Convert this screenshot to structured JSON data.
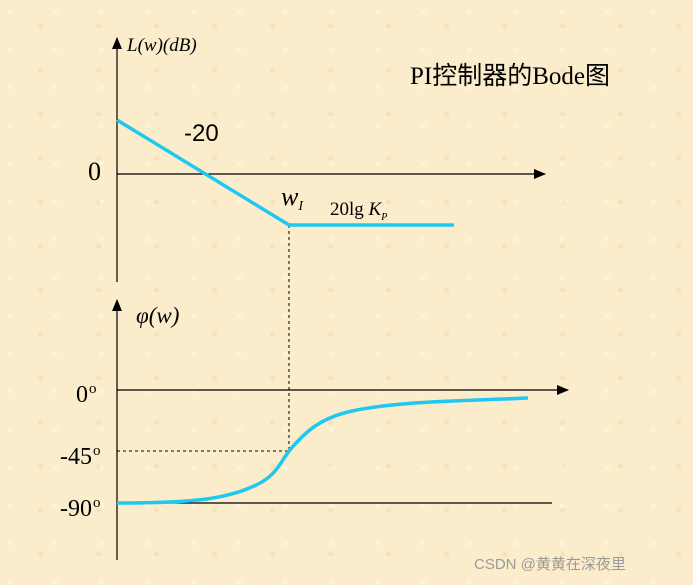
{
  "title": "PI控制器的Bode图",
  "magnitude_plot": {
    "ylabel": "L(w)(dB)",
    "zero_tick": "0",
    "slope_label": "-20",
    "corner_label": {
      "symbol": "w",
      "subscript": "I"
    },
    "gain_label": {
      "prefix": "20lg",
      "symbol": "K",
      "subscript": "P"
    }
  },
  "phase_plot": {
    "ylabel": "φ(w)",
    "ticks": [
      {
        "value": "0",
        "unit": "o"
      },
      {
        "value": "-45",
        "unit": "o"
      },
      {
        "value": "-90",
        "unit": "o"
      }
    ]
  },
  "watermark": "CSDN @黄黄在深夜里",
  "colors": {
    "curve": "#1fc8f0",
    "axis": "#000000",
    "background": "#fbeccb"
  }
}
